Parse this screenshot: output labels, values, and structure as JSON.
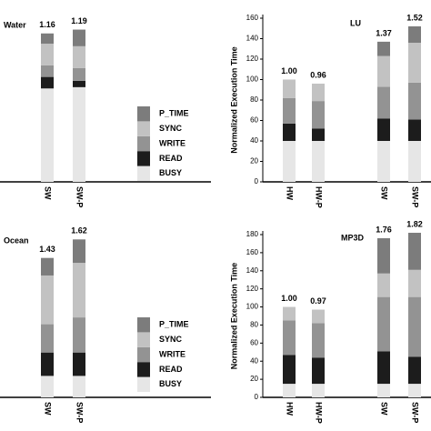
{
  "chart_data": [
    {
      "type": "stacked_bar",
      "title": "Water",
      "categories": [
        "SW",
        "SW-P"
      ],
      "series": [
        {
          "name": "BUSY",
          "color": "#e6e6e6",
          "values": [
            73,
            74
          ]
        },
        {
          "name": "READ",
          "color": "#1c1c1c",
          "values": [
            9,
            5
          ]
        },
        {
          "name": "WRITE",
          "color": "#939393",
          "values": [
            9,
            10
          ]
        },
        {
          "name": "SYNC",
          "color": "#c2c2c2",
          "values": [
            17,
            17
          ]
        },
        {
          "name": "P_TIME",
          "color": "#7c7c7c",
          "values": [
            8,
            13
          ]
        }
      ],
      "value_labels": [
        "1.16",
        "1.19"
      ],
      "ylim": [
        0,
        140
      ],
      "legend": true
    },
    {
      "type": "stacked_bar",
      "title": "LU",
      "y_label": "Normalized Execution Time",
      "categories": [
        "HW",
        "HW-P",
        "SW",
        "SW-P"
      ],
      "series": [
        {
          "name": "BUSY",
          "color": "#e6e6e6",
          "values": [
            40,
            40,
            40,
            40
          ]
        },
        {
          "name": "READ",
          "color": "#1c1c1c",
          "values": [
            17,
            12,
            22,
            21
          ]
        },
        {
          "name": "WRITE",
          "color": "#939393",
          "values": [
            25,
            27,
            31,
            36
          ]
        },
        {
          "name": "SYNC",
          "color": "#c2c2c2",
          "values": [
            18,
            17,
            30,
            39
          ]
        },
        {
          "name": "P_TIME",
          "color": "#7c7c7c",
          "values": [
            0,
            0,
            14,
            16
          ]
        }
      ],
      "value_labels": [
        "1.00",
        "0.96",
        "1.37",
        "1.52"
      ],
      "ylim": [
        0,
        160
      ],
      "yticks": [
        0,
        20,
        40,
        60,
        80,
        100,
        120,
        140,
        160
      ],
      "legend": false
    },
    {
      "type": "stacked_bar",
      "title": "Ocean",
      "categories": [
        "SW",
        "SW-P"
      ],
      "series": [
        {
          "name": "BUSY",
          "color": "#e6e6e6",
          "values": [
            22,
            22
          ]
        },
        {
          "name": "READ",
          "color": "#1c1c1c",
          "values": [
            24,
            24
          ]
        },
        {
          "name": "WRITE",
          "color": "#939393",
          "values": [
            29,
            36
          ]
        },
        {
          "name": "SYNC",
          "color": "#c2c2c2",
          "values": [
            50,
            56
          ]
        },
        {
          "name": "P_TIME",
          "color": "#7c7c7c",
          "values": [
            18,
            24
          ]
        }
      ],
      "value_labels": [
        "1.43",
        "1.62"
      ],
      "ylim": [
        0,
        180
      ],
      "legend": true
    },
    {
      "type": "stacked_bar",
      "title": "MP3D",
      "y_label": "Normalized Execution Time",
      "categories": [
        "HW",
        "HW-P",
        "SW",
        "SW-P"
      ],
      "series": [
        {
          "name": "BUSY",
          "color": "#e6e6e6",
          "values": [
            15,
            15,
            15,
            15
          ]
        },
        {
          "name": "READ",
          "color": "#1c1c1c",
          "values": [
            32,
            29,
            36,
            30
          ]
        },
        {
          "name": "WRITE",
          "color": "#939393",
          "values": [
            38,
            38,
            60,
            66
          ]
        },
        {
          "name": "SYNC",
          "color": "#c2c2c2",
          "values": [
            15,
            15,
            26,
            30
          ]
        },
        {
          "name": "P_TIME",
          "color": "#7c7c7c",
          "values": [
            0,
            0,
            39,
            41
          ]
        }
      ],
      "value_labels": [
        "1.00",
        "0.97",
        "1.76",
        "1.82"
      ],
      "ylim": [
        0,
        180
      ],
      "yticks": [
        0,
        20,
        40,
        60,
        80,
        100,
        120,
        140,
        160,
        180
      ],
      "legend": false
    }
  ]
}
